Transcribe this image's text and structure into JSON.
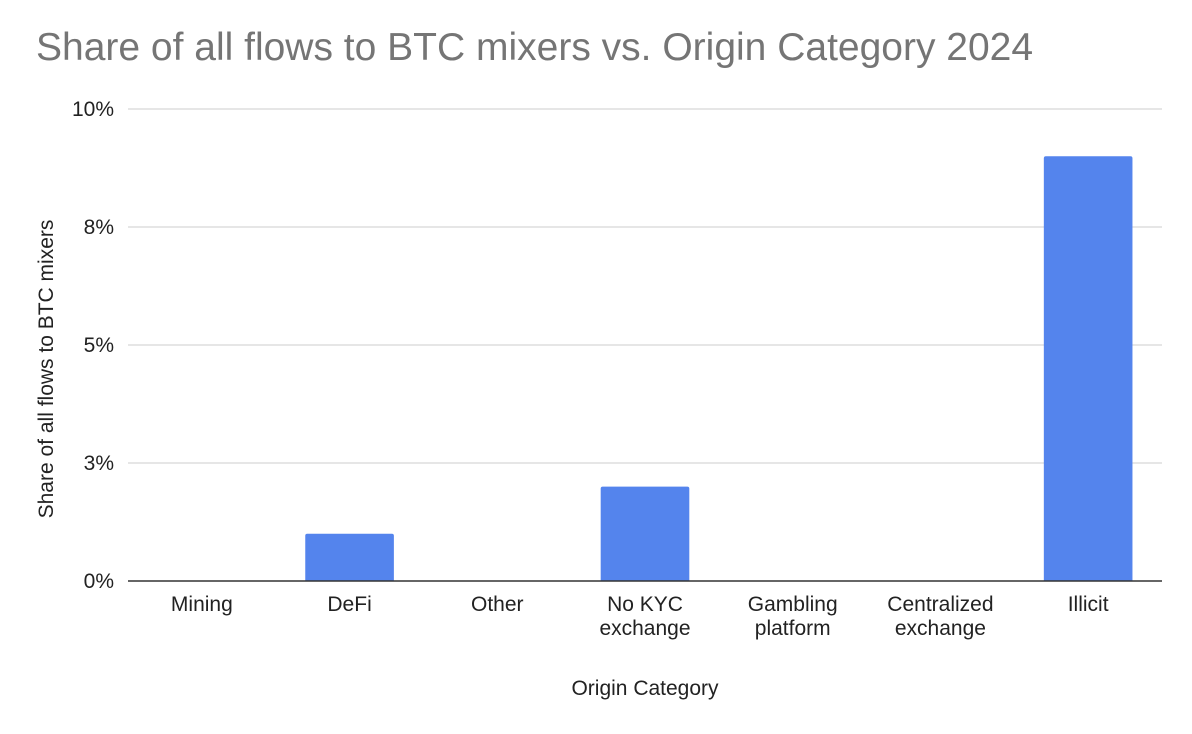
{
  "chart_data": {
    "type": "bar",
    "title": "Share of all flows to BTC mixers vs. Origin Category 2024",
    "xlabel": "Origin Category",
    "ylabel": "Share of all flows to BTC mixers",
    "categories": [
      [
        "Mining"
      ],
      [
        "DeFi"
      ],
      [
        "Other"
      ],
      [
        "No KYC",
        "exchange"
      ],
      [
        "Gambling",
        "platform"
      ],
      [
        "Centralized",
        "exchange"
      ],
      [
        "Illicit"
      ]
    ],
    "values": [
      0,
      1.0,
      0,
      2.0,
      0,
      0,
      9.0
    ],
    "ylim": [
      0,
      10
    ],
    "yticks": [
      0,
      2.5,
      5,
      7.5,
      10
    ],
    "ytick_labels": [
      "0%",
      "3%",
      "5%",
      "8%",
      "10%"
    ],
    "grid": true,
    "legend": "none",
    "bar_color": "#5484ed"
  }
}
